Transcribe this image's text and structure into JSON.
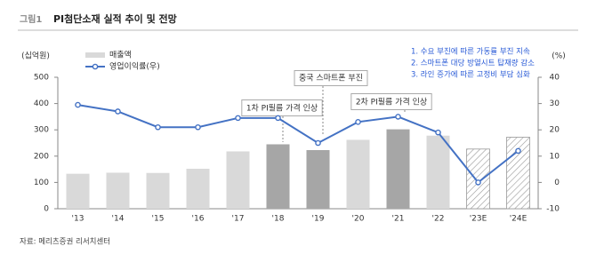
{
  "chart_data": {
    "type": "bar_line",
    "figure_label": "그림1",
    "title": "PI첨단소재 실적 추이 및 전망",
    "ylabel": "(십억원)",
    "y2label": "(%)",
    "source": "자료: 메리츠증권 리서치센터",
    "categories": [
      "'13",
      "'14",
      "'15",
      "'16",
      "'17",
      "'18",
      "'19",
      "'20",
      "'21",
      "'22",
      "'23E",
      "'24E"
    ],
    "series": [
      {
        "name": "매출액",
        "type": "bar",
        "color": "#d9d9d9",
        "colors": [
          "#d9d9d9",
          "#d9d9d9",
          "#d9d9d9",
          "#d9d9d9",
          "#d9d9d9",
          "#a6a6a6",
          "#a6a6a6",
          "#d9d9d9",
          "#a6a6a6",
          "#d9d9d9",
          "#d9d9d9",
          "#d9d9d9"
        ],
        "hatched": [
          false,
          false,
          false,
          false,
          false,
          false,
          false,
          false,
          false,
          false,
          true,
          true
        ],
        "values": [
          133,
          137,
          136,
          152,
          218,
          245,
          223,
          262,
          302,
          278,
          227,
          272
        ]
      },
      {
        "name": "영업이익률(우)",
        "type": "line",
        "axis": "y2",
        "color": "#4472c4",
        "values": [
          29.5,
          27,
          21,
          21,
          24.5,
          24.5,
          15,
          23,
          25,
          19,
          0,
          12
        ]
      }
    ],
    "ylim": [
      0,
      500
    ],
    "yticks": [
      0,
      100,
      200,
      300,
      400,
      500
    ],
    "y2lim": [
      -10,
      40
    ],
    "y2ticks": [
      -10,
      0,
      10,
      20,
      30,
      40
    ],
    "annotations": [
      "1차 PI필름 가격 인상",
      "중국 스마트폰 부진",
      "2차 PI필름 가격 인상"
    ],
    "notes": [
      "1. 수요 부진에 따른 가동률 부진 지속",
      "2. 스마트폰 대당 방열시트 탑재량 감소",
      "3. 라인 증가에 따른 고정비 부담 심화"
    ]
  }
}
